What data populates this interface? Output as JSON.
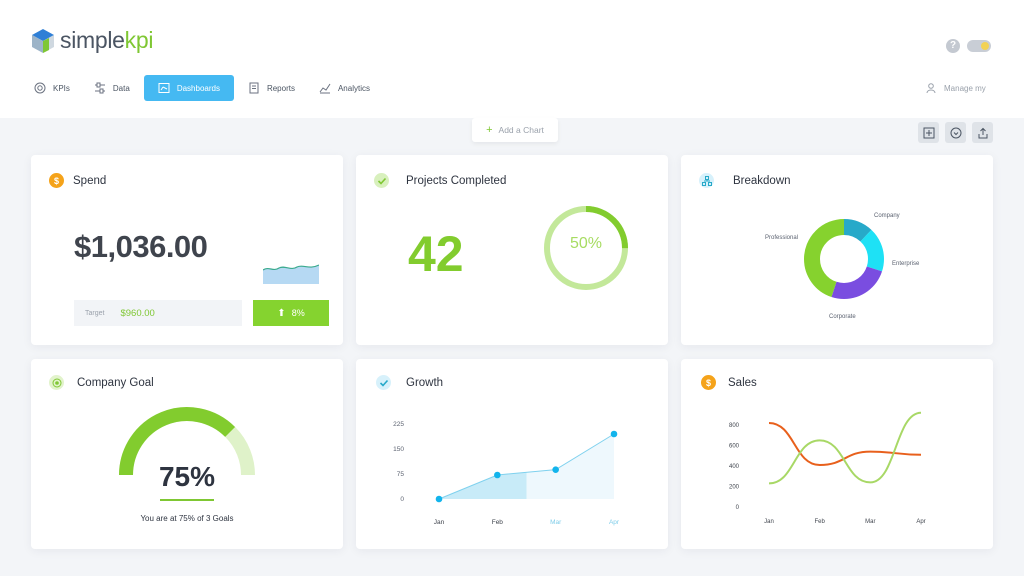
{
  "app": {
    "logo_text_a": "simple",
    "logo_text_b": "kpi",
    "help": "?"
  },
  "nav": {
    "items": [
      {
        "label": "KPIs",
        "icon": "target-icon"
      },
      {
        "label": "Data",
        "icon": "sliders-icon"
      },
      {
        "label": "Dashboards",
        "icon": "dashboard-icon",
        "active": true
      },
      {
        "label": "Reports",
        "icon": "document-icon"
      },
      {
        "label": "Analytics",
        "icon": "analytics-icon"
      }
    ],
    "manage_label": "Manage my"
  },
  "toolbar": {
    "add_chart": "Add a Chart"
  },
  "cards": {
    "spend": {
      "title": "Spend",
      "icon_symbol": "$",
      "value": "$1,036.00",
      "target_label": "Target",
      "target_value": "$960.00",
      "change": "8%"
    },
    "projects": {
      "title": "Projects Completed",
      "value": "42",
      "ring_percent": "50%",
      "ring_fraction": 0.5
    },
    "breakdown": {
      "title": "Breakdown",
      "slices": [
        {
          "label": "Company",
          "value": 12,
          "color": "#27a9c9"
        },
        {
          "label": "Enterprise",
          "value": 18,
          "color": "#1ee1f5"
        },
        {
          "label": "Corporate",
          "value": 25,
          "color": "#7a4de0"
        },
        {
          "label": "Professional",
          "value": 45,
          "color": "#86d22e"
        }
      ]
    },
    "goal": {
      "title": "Company Goal",
      "percent": "75%",
      "fraction": 0.75,
      "caption": "You are at 75% of 3 Goals"
    },
    "growth": {
      "title": "Growth"
    },
    "sales": {
      "title": "Sales",
      "icon_symbol": "$"
    }
  },
  "colors": {
    "accent_green": "#7fc733",
    "accent_blue": "#45b9f2",
    "orange": "#f5a31a"
  },
  "chart_data": [
    {
      "type": "area",
      "title": "Growth",
      "categories": [
        "Jan",
        "Feb",
        "Mar",
        "Apr"
      ],
      "y_ticks": [
        "225",
        "150",
        "75",
        "0"
      ],
      "ylim": [
        0,
        225
      ],
      "values": [
        0,
        72,
        88,
        195
      ]
    },
    {
      "type": "line",
      "title": "Sales",
      "categories": [
        "Jan",
        "Feb",
        "Mar",
        "Apr"
      ],
      "y_ticks": [
        "800",
        "600",
        "400",
        "200",
        "0"
      ],
      "ylim": [
        0,
        800
      ],
      "series": [
        {
          "color": "#e8601c",
          "values": [
            820,
            410,
            540,
            510
          ]
        },
        {
          "color": "#a8d866",
          "values": [
            230,
            650,
            240,
            920
          ]
        }
      ]
    }
  ]
}
